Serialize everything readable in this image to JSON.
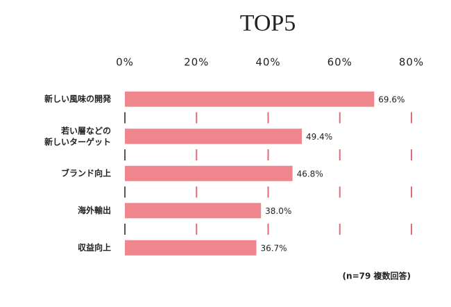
{
  "chart_data": {
    "type": "bar",
    "orientation": "horizontal",
    "title": "TOP5",
    "categories": [
      "新しい風味の開発",
      "若い層などの\n新しいターゲット",
      "ブランド向上",
      "海外輸出",
      "収益向上"
    ],
    "values": [
      69.6,
      49.4,
      46.8,
      38.0,
      36.7
    ],
    "value_labels": [
      "69.6%",
      "49.4%",
      "46.8%",
      "38.0%",
      "36.7%"
    ],
    "color": "#ef858d",
    "xlim": [
      0,
      80
    ],
    "xticks": [
      {
        "value": 0,
        "label": "0%"
      },
      {
        "value": 20,
        "label": "20%"
      },
      {
        "value": 40,
        "label": "40%"
      },
      {
        "value": 60,
        "label": "60%"
      },
      {
        "value": 80,
        "label": "80%"
      }
    ],
    "grid": true,
    "note": "(n=79 複数回答)"
  }
}
